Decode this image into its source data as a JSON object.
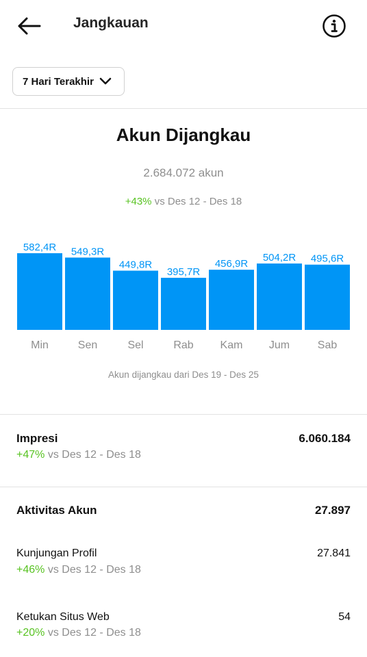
{
  "header": {
    "title": "Jangkauan",
    "back_icon": "arrow-left-icon",
    "info_icon": "info-circle-icon"
  },
  "range_selector": {
    "label": "7 Hari Terakhir",
    "icon": "chevron-down-icon"
  },
  "reach": {
    "title": "Akun Dijangkau",
    "count": "2.684.072 akun",
    "change": "+43%",
    "compare": "vs Des 12 - Des 18",
    "caption": "Akun dijangkau dari Des 19 - Des 25"
  },
  "chart_data": {
    "type": "bar",
    "categories": [
      "Min",
      "Sen",
      "Sel",
      "Rab",
      "Kam",
      "Jum",
      "Sab"
    ],
    "values": [
      582.4,
      549.3,
      449.8,
      395.7,
      456.9,
      504.2,
      495.6
    ],
    "data_labels": [
      "582,4R",
      "549,3R",
      "449,8R",
      "395,7R",
      "456,9R",
      "504,2R",
      "495,6R"
    ],
    "title": "",
    "xlabel": "",
    "ylabel": "",
    "ylim": [
      0,
      582.4
    ],
    "grid": false,
    "colors": {
      "bar": "#0095f6",
      "label": "#0095f6",
      "axis_label": "#8e8e8e"
    }
  },
  "impressions": {
    "label": "Impresi",
    "value": "6.060.184",
    "change": "+47%",
    "compare": "vs Des 12 - Des 18"
  },
  "account_activity": {
    "label": "Aktivitas Akun",
    "value": "27.897",
    "items": [
      {
        "label": "Kunjungan Profil",
        "value": "27.841",
        "change": "+46%",
        "compare": "vs Des 12 - Des 18"
      },
      {
        "label": "Ketukan Situs Web",
        "value": "54",
        "change": "+20%",
        "compare": "vs Des 12 - Des 18"
      }
    ]
  },
  "colors": {
    "accent": "#0095f6",
    "positive": "#58c322",
    "muted": "#8e8e8e",
    "divider": "#e2e2e2"
  }
}
